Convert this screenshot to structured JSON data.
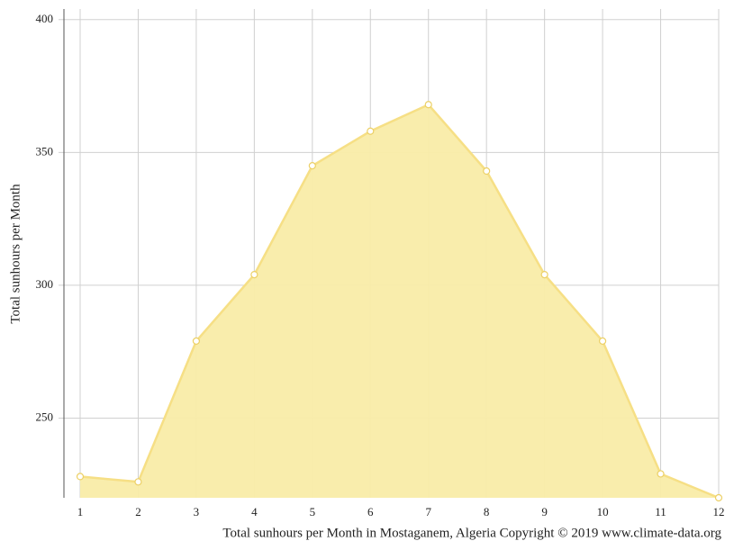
{
  "chart_data": {
    "type": "area",
    "y_label": "Total sunhours per Month",
    "caption": "Total sunhours per Month in Mostaganem, Algeria Copyright © 2019 www.climate-data.org",
    "x": [
      1,
      2,
      3,
      4,
      5,
      6,
      7,
      8,
      9,
      10,
      11,
      12
    ],
    "values": [
      228,
      226,
      279,
      304,
      345,
      358,
      368,
      343,
      304,
      279,
      229,
      220
    ],
    "color": "#f9eca8",
    "line_color": "#f6df85",
    "xlim": [
      1,
      12
    ],
    "xticks": [
      1,
      2,
      3,
      4,
      5,
      6,
      7,
      8,
      9,
      10,
      11,
      12
    ],
    "ylim": [
      220,
      404
    ],
    "yticks": [
      250,
      300,
      350,
      400
    ],
    "grid": true
  }
}
